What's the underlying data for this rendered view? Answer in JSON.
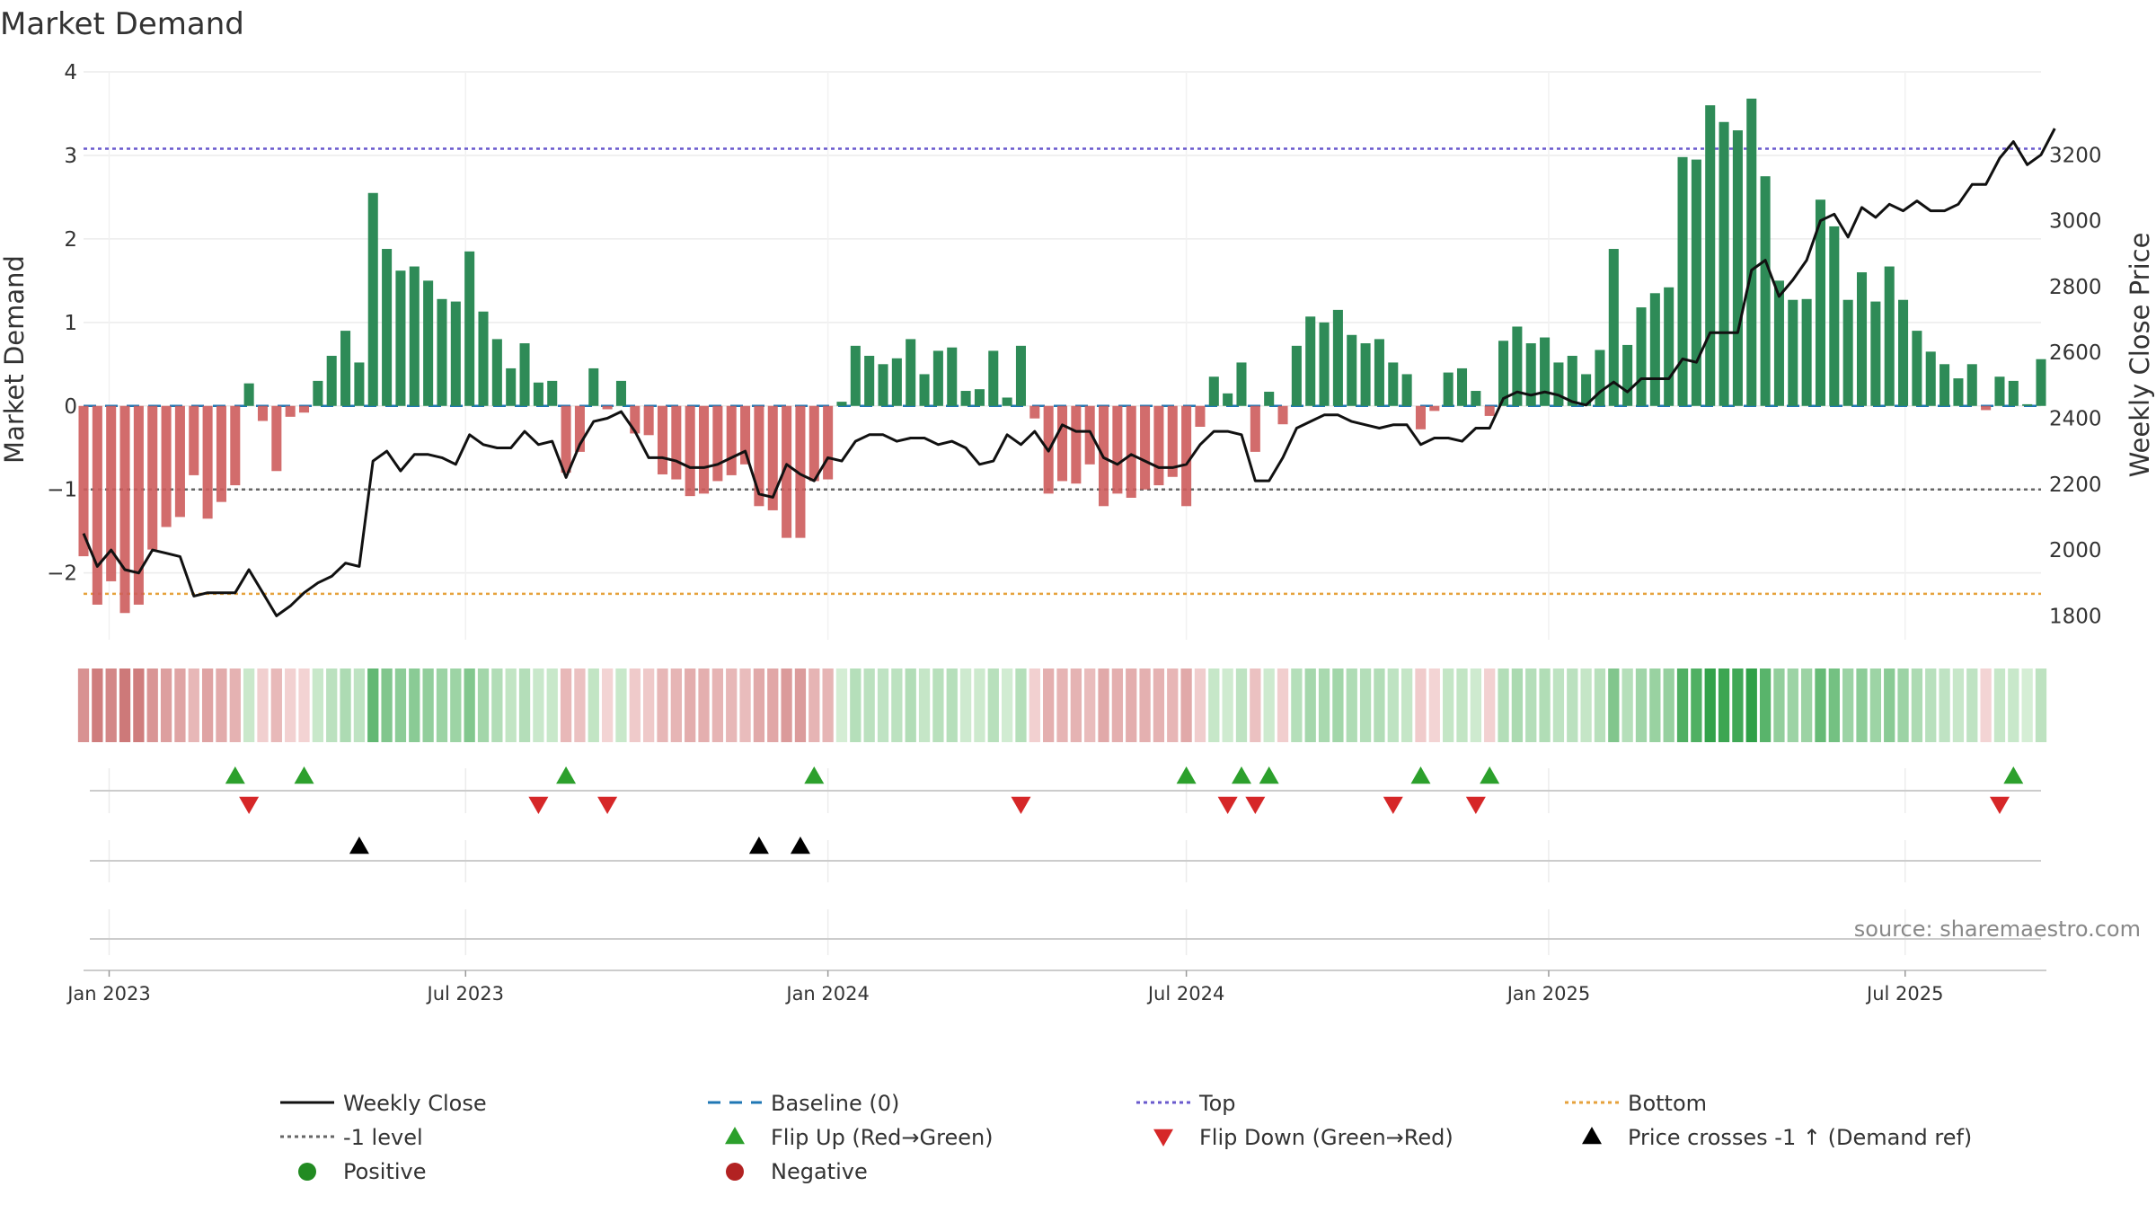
{
  "chart_data": {
    "type": "bar",
    "title": "Market Demand",
    "ylabel": "Market Demand",
    "y2label": "Weekly Close Price",
    "ylim": [
      -2.8,
      4
    ],
    "y2lim": [
      1700,
      3430
    ],
    "yticks": [
      4,
      3,
      2,
      1,
      0,
      -1,
      -2
    ],
    "ytick_labels": [
      "4",
      "3",
      "2",
      "1",
      "0",
      "−1",
      "−2"
    ],
    "y2ticks": [
      3200,
      3000,
      2800,
      2600,
      2400,
      2200,
      2000,
      1800
    ],
    "x_date_range": [
      "2022-12-19",
      "2025-09-08"
    ],
    "x_ticks": [
      {
        "date": "2023-01-01",
        "label": "Jan 2023"
      },
      {
        "date": "2023-07-01",
        "label": "Jul 2023"
      },
      {
        "date": "2024-01-01",
        "label": "Jan 2024"
      },
      {
        "date": "2024-07-01",
        "label": "Jul 2024"
      },
      {
        "date": "2025-01-01",
        "label": "Jan 2025"
      },
      {
        "date": "2025-07-01",
        "label": "Jul 2025"
      }
    ],
    "reference_lines": {
      "baseline": 0,
      "top": 3.08,
      "level_minus1": -1,
      "bottom": -2.25
    },
    "demand_start_date": "2022-12-19",
    "demand_interval_days": 7,
    "demand_values": [
      -1.8,
      -2.38,
      -2.1,
      -2.48,
      -2.38,
      -1.72,
      -1.45,
      -1.33,
      -0.83,
      -1.35,
      -1.15,
      -0.95,
      0.27,
      -0.18,
      -0.78,
      -0.13,
      -0.08,
      0.3,
      0.6,
      0.9,
      0.52,
      2.55,
      1.88,
      1.62,
      1.67,
      1.5,
      1.28,
      1.25,
      1.85,
      1.13,
      0.8,
      0.45,
      0.75,
      0.28,
      0.3,
      -0.8,
      -0.55,
      0.45,
      -0.04,
      0.3,
      -0.33,
      -0.35,
      -0.82,
      -0.88,
      -1.08,
      -1.05,
      -0.9,
      -0.83,
      -0.7,
      -1.2,
      -1.25,
      -1.58,
      -1.58,
      -0.9,
      -0.88,
      0.05,
      0.72,
      0.6,
      0.5,
      0.57,
      0.8,
      0.38,
      0.66,
      0.7,
      0.18,
      0.2,
      0.66,
      0.1,
      0.72,
      -0.15,
      -1.05,
      -0.9,
      -0.93,
      -0.7,
      -1.2,
      -1.05,
      -1.1,
      -1.0,
      -0.95,
      -0.85,
      -1.2,
      -0.25,
      0.35,
      0.15,
      0.52,
      -0.55,
      0.17,
      -0.22,
      0.72,
      1.07,
      1.0,
      1.15,
      0.85,
      0.75,
      0.8,
      0.52,
      0.38,
      -0.28,
      -0.06,
      0.4,
      0.45,
      0.18,
      -0.12,
      0.78,
      0.95,
      0.75,
      0.82,
      0.52,
      0.6,
      0.38,
      0.67,
      1.88,
      0.73,
      1.18,
      1.35,
      1.42,
      2.98,
      2.95,
      3.6,
      3.4,
      3.3,
      3.68,
      2.75,
      1.5,
      1.27,
      1.28,
      2.47,
      2.15,
      1.27,
      1.6,
      1.25,
      1.67,
      1.27,
      0.9,
      0.65,
      0.5,
      0.33,
      0.5,
      -0.05,
      0.35,
      0.3,
      0.02,
      0.56
    ],
    "price_start_date": "2022-12-19",
    "price_interval_days": 7,
    "price_values": [
      2050,
      1950,
      2000,
      1940,
      1930,
      2000,
      1990,
      1980,
      1860,
      1870,
      1870,
      1870,
      1940,
      1870,
      1800,
      1830,
      1870,
      1900,
      1920,
      1960,
      1950,
      2270,
      2300,
      2240,
      2290,
      2290,
      2280,
      2260,
      2350,
      2320,
      2310,
      2310,
      2360,
      2320,
      2330,
      2220,
      2320,
      2390,
      2400,
      2420,
      2360,
      2280,
      2280,
      2270,
      2250,
      2250,
      2260,
      2280,
      2300,
      2170,
      2160,
      2260,
      2230,
      2210,
      2280,
      2270,
      2330,
      2350,
      2350,
      2330,
      2340,
      2340,
      2320,
      2330,
      2310,
      2260,
      2270,
      2350,
      2320,
      2360,
      2300,
      2380,
      2360,
      2360,
      2280,
      2260,
      2290,
      2270,
      2250,
      2250,
      2260,
      2320,
      2360,
      2360,
      2350,
      2210,
      2210,
      2280,
      2370,
      2390,
      2410,
      2410,
      2390,
      2380,
      2370,
      2380,
      2380,
      2320,
      2340,
      2340,
      2330,
      2370,
      2370,
      2460,
      2480,
      2470,
      2480,
      2470,
      2450,
      2440,
      2480,
      2510,
      2480,
      2520,
      2520,
      2520,
      2580,
      2570,
      2660,
      2660,
      2660,
      2850,
      2880,
      2770,
      2820,
      2880,
      3000,
      3020,
      2950,
      3040,
      3010,
      3050,
      3030,
      3060,
      3030,
      3030,
      3050,
      3110,
      3110,
      3190,
      3240,
      3170,
      3200,
      3280
    ],
    "flip_up_dates": [
      "2023-03-06",
      "2023-04-10",
      "2023-08-21",
      "2023-12-25",
      "2024-07-01",
      "2024-07-29",
      "2024-08-12",
      "2024-10-28",
      "2024-12-02",
      "2025-08-25"
    ],
    "flip_down_dates": [
      "2023-03-13",
      "2023-08-07",
      "2023-09-11",
      "2024-04-08",
      "2024-07-22",
      "2024-08-05",
      "2024-10-14",
      "2024-11-25",
      "2025-08-18"
    ],
    "price_cross_dates": [
      "2023-05-08",
      "2023-11-27",
      "2023-12-18"
    ],
    "colors": {
      "positive_bar": "#2e8b57",
      "negative_bar": "#cd5c5c",
      "price_line": "#111111",
      "baseline": "#1f77b4",
      "top_line": "#6a5acd",
      "level_line": "#666666",
      "bottom_line": "#e6a23c",
      "flip_up": "#2ca02c",
      "flip_down": "#d62728",
      "price_cross": "#000000",
      "positive_dot": "#228b22",
      "negative_dot": "#b22222"
    },
    "legend": [
      {
        "label": "Weekly Close",
        "kind": "line-solid",
        "color": "#111111"
      },
      {
        "label": "Baseline (0)",
        "kind": "line-dash",
        "color": "#1f77b4"
      },
      {
        "label": "Top",
        "kind": "line-dot",
        "color": "#6a5acd"
      },
      {
        "label": "Bottom",
        "kind": "line-dot",
        "color": "#e6a23c"
      },
      {
        "label": "-1 level",
        "kind": "line-dot",
        "color": "#666666"
      },
      {
        "label": "Flip Up (Red→Green)",
        "kind": "triangle-up",
        "color": "#2ca02c"
      },
      {
        "label": "Flip Down (Green→Red)",
        "kind": "triangle-down",
        "color": "#d62728"
      },
      {
        "label": "Price crosses -1 ↑ (Demand ref)",
        "kind": "triangle-up",
        "color": "#000000"
      },
      {
        "label": "Positive",
        "kind": "dot",
        "color": "#228b22"
      },
      {
        "label": "Negative",
        "kind": "dot",
        "color": "#b22222"
      }
    ],
    "source": "source: sharemaestro.com"
  }
}
